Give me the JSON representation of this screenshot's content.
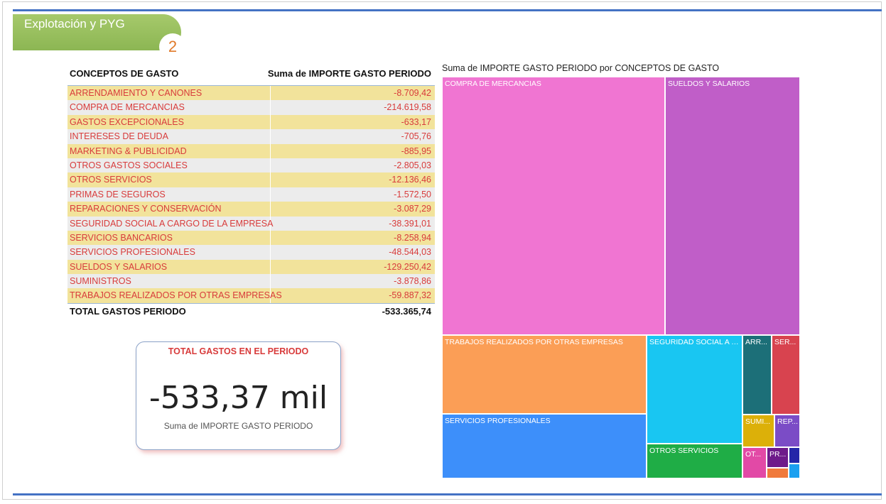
{
  "page_badge": {
    "title": "Explotación y PYG",
    "number": "2"
  },
  "table": {
    "header": {
      "concept": "CONCEPTOS DE GASTO",
      "amount": "Suma de IMPORTE GASTO PERIODO"
    },
    "rows": [
      {
        "concept": "ARRENDAMIENTO Y CANONES",
        "amount": "-8.709,42"
      },
      {
        "concept": "COMPRA DE MERCANCIAS",
        "amount": "-214.619,58"
      },
      {
        "concept": "GASTOS EXCEPCIONALES",
        "amount": "-633,17"
      },
      {
        "concept": "INTERESES DE DEUDA",
        "amount": "-705,76"
      },
      {
        "concept": "MARKETING & PUBLICIDAD",
        "amount": "-885,95"
      },
      {
        "concept": "OTROS GASTOS SOCIALES",
        "amount": "-2.805,03"
      },
      {
        "concept": "OTROS SERVICIOS",
        "amount": "-12.136,46"
      },
      {
        "concept": "PRIMAS DE SEGUROS",
        "amount": "-1.572,50"
      },
      {
        "concept": "REPARACIONES Y CONSERVACIÓN",
        "amount": "-3.087,29"
      },
      {
        "concept": "SEGURIDAD SOCIAL A CARGO DE LA EMPRESA",
        "amount": "-38.391,01"
      },
      {
        "concept": "SERVICIOS BANCARIOS",
        "amount": "-8.258,94"
      },
      {
        "concept": "SERVICIOS PROFESIONALES",
        "amount": "-48.544,03"
      },
      {
        "concept": "SUELDOS Y SALARIOS",
        "amount": "-129.250,42"
      },
      {
        "concept": "SUMINISTROS",
        "amount": "-3.878,86"
      },
      {
        "concept": "TRABAJOS REALIZADOS POR OTRAS EMPRESAS",
        "amount": "-59.887,32"
      }
    ],
    "total": {
      "concept": "TOTAL GASTOS PERIODO",
      "amount": "-533.365,74"
    },
    "colors": {
      "odd_row": "#f2e39b",
      "even_row": "#ececec",
      "text": "#d83b3b"
    }
  },
  "kpi_card": {
    "title": "TOTAL GASTOS EN EL PERIODO",
    "value": "-533,37 mil",
    "label": "Suma de IMPORTE GASTO PERIODO"
  },
  "chart_data": {
    "type": "treemap",
    "title": "Suma de IMPORTE GASTO PERIODO por CONCEPTOS DE GASTO",
    "categories": [
      "COMPRA DE MERCANCIAS",
      "SUELDOS Y SALARIOS",
      "TRABAJOS REALIZADOS POR OTRAS EMPRESAS",
      "SERVICIOS PROFESIONALES",
      "SEGURIDAD SOCIAL A CARGO DE LA EMPRESA",
      "OTROS SERVICIOS",
      "ARRENDAMIENTO Y CANONES",
      "SERVICIOS BANCARIOS",
      "SUMINISTROS",
      "REPARACIONES Y CONSERVACIÓN",
      "OTROS GASTOS SOCIALES",
      "PRIMAS DE SEGUROS",
      "MARKETING & PUBLICIDAD",
      "INTERESES DE DEUDA",
      "GASTOS EXCEPCIONALES"
    ],
    "values": [
      -214619.58,
      -129250.42,
      -59887.32,
      -48544.03,
      -38391.01,
      -12136.46,
      -8709.42,
      -8258.94,
      -3878.86,
      -3087.29,
      -2805.03,
      -1572.5,
      -885.95,
      -705.76,
      -633.17
    ],
    "display_labels": [
      "COMPRA DE MERCANCIAS",
      "SUELDOS Y SALARIOS",
      "TRABAJOS REALIZADOS POR OTRAS EMPRESAS",
      "SERVICIOS PROFESIONALES",
      "SEGURIDAD SOCIAL A C...",
      "OTROS SERVICIOS",
      "ARR...",
      "SER...",
      "SUMI...",
      "REP...",
      "OT...",
      "PR...",
      "",
      "",
      ""
    ],
    "colors": [
      "#f075d2",
      "#c05ec8",
      "#fb9e56",
      "#3d8ffa",
      "#19c6f2",
      "#1fad46",
      "#1c6f78",
      "#d8434f",
      "#dcb009",
      "#7b4cc6",
      "#e249a6",
      "#6e1a8a",
      "#2426a8",
      "#f07a3c",
      "#1ba0f0"
    ]
  }
}
